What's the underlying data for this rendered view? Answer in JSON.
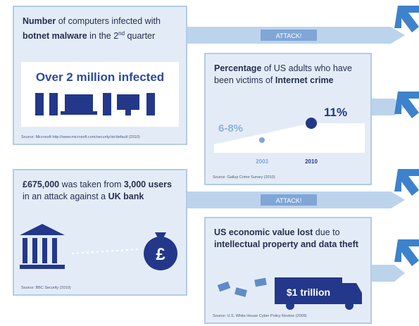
{
  "panels": [
    {
      "title": [
        "Number",
        " of computers infected with ",
        "botnet malware",
        " in the 2",
        "nd",
        " quarter"
      ],
      "headline": "Over 2 million infected",
      "source": "Source: Microsoft http://www.microsoft.com/security/sir/default (2010)"
    },
    {
      "title": [
        "Percentage",
        " of US adults who have been victims of ",
        "Internet crime"
      ],
      "points": [
        {
          "label": "6-8%",
          "year": "2003"
        },
        {
          "label": "11%",
          "year": "2010"
        }
      ],
      "source": "Source: Gallup Crime Survey (2010)"
    },
    {
      "title": [
        "£675,000",
        " was taken from ",
        "3,000 users",
        " in an attack against a ",
        "UK bank"
      ],
      "icon_label": "£",
      "source": "Source: BBC Security (2010)"
    },
    {
      "title": [
        "US economic value lost",
        " due to ",
        "intellectual property and data theft"
      ],
      "headline": "$1 trillion",
      "source": "Source: U.S. White House Cyber Policy Review (2009)"
    }
  ],
  "connectors": [
    "ATTACK!",
    "ATTACK!"
  ]
}
